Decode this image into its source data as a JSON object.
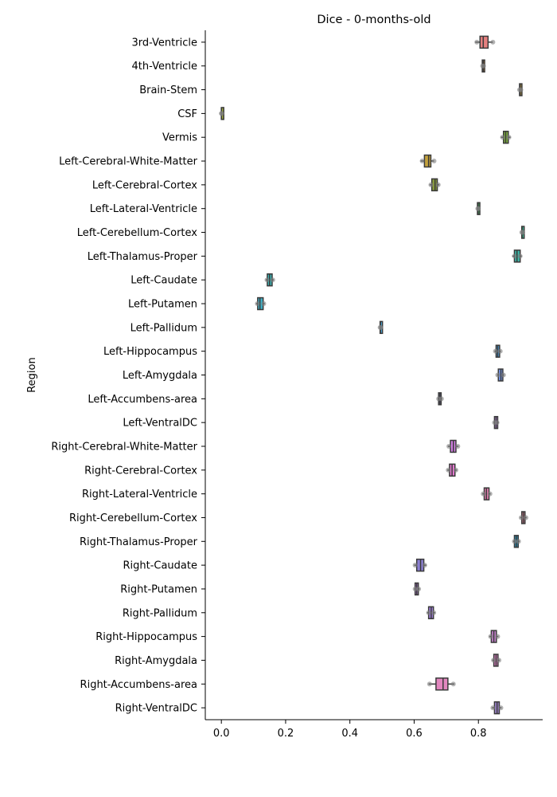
{
  "chart_data": {
    "type": "boxplot",
    "orientation": "horizontal",
    "title": "Dice - 0-months-old",
    "xlabel": "",
    "ylabel": "Region",
    "xlim": [
      -0.05,
      1.0
    ],
    "xticks": [
      0.0,
      0.2,
      0.4,
      0.6,
      0.8
    ],
    "xtick_labels": [
      "0.0",
      "0.2",
      "0.4",
      "0.6",
      "0.8"
    ],
    "grid": false,
    "colors": [
      "#e5807f",
      "#d98f40",
      "#b99b3c",
      "#9ba83f",
      "#7fb13f",
      "#c4a23d",
      "#8a9c3d",
      "#4bb063",
      "#3eb38e",
      "#3eb3a4",
      "#3cb2b3",
      "#3fb0c6",
      "#4aa9db",
      "#4c9ad6",
      "#7597e8",
      "#9893e5",
      "#b98bde",
      "#d27ee3",
      "#e57ad2",
      "#e67eb1",
      "#e8859a",
      "#2a8fb8",
      "#8b7fd3",
      "#b07fd0",
      "#a07fdd",
      "#c47fcc",
      "#d87fc0",
      "#e287bf",
      "#9d84cc"
    ],
    "regions": [
      {
        "name": "3rd-Ventricle",
        "q1": 0.805,
        "median": 0.815,
        "q3": 0.83,
        "wlo": 0.79,
        "whi": 0.845,
        "points": [
          0.795,
          0.845
        ]
      },
      {
        "name": "4th-Ventricle",
        "q1": 0.812,
        "median": 0.815,
        "q3": 0.818,
        "wlo": 0.81,
        "whi": 0.82,
        "points": [
          0.813,
          0.816
        ]
      },
      {
        "name": "Brain-Stem",
        "q1": 0.928,
        "median": 0.93,
        "q3": 0.933,
        "wlo": 0.925,
        "whi": 0.935,
        "points": [
          0.928,
          0.932
        ]
      },
      {
        "name": "CSF",
        "q1": 0.0,
        "median": 0.0,
        "q3": 0.001,
        "wlo": 0.0,
        "whi": 0.002,
        "points": [
          0.0,
          0.001
        ]
      },
      {
        "name": "Vermis",
        "q1": 0.878,
        "median": 0.885,
        "q3": 0.893,
        "wlo": 0.87,
        "whi": 0.9,
        "points": [
          0.875,
          0.895
        ]
      },
      {
        "name": "Left-Cerebral-White-Matter",
        "q1": 0.632,
        "median": 0.645,
        "q3": 0.652,
        "wlo": 0.62,
        "whi": 0.662,
        "points": [
          0.625,
          0.662
        ]
      },
      {
        "name": "Left-Cerebral-Cortex",
        "q1": 0.655,
        "median": 0.665,
        "q3": 0.672,
        "wlo": 0.648,
        "whi": 0.678,
        "points": [
          0.652,
          0.675
        ]
      },
      {
        "name": "Left-Lateral-Ventricle",
        "q1": 0.797,
        "median": 0.799,
        "q3": 0.8,
        "wlo": 0.795,
        "whi": 0.801,
        "points": [
          0.798,
          0.8
        ]
      },
      {
        "name": "Left-Cerebellum-Cortex",
        "q1": 0.935,
        "median": 0.936,
        "q3": 0.938,
        "wlo": 0.934,
        "whi": 0.939,
        "points": [
          0.935,
          0.938
        ]
      },
      {
        "name": "Left-Thalamus-Proper",
        "q1": 0.912,
        "median": 0.92,
        "q3": 0.93,
        "wlo": 0.905,
        "whi": 0.935,
        "points": [
          0.912,
          0.93
        ]
      },
      {
        "name": "Left-Caudate",
        "q1": 0.143,
        "median": 0.15,
        "q3": 0.158,
        "wlo": 0.138,
        "whi": 0.163,
        "points": [
          0.142,
          0.16
        ]
      },
      {
        "name": "Left-Putamen",
        "q1": 0.113,
        "median": 0.12,
        "q3": 0.13,
        "wlo": 0.108,
        "whi": 0.135,
        "points": [
          0.112,
          0.132
        ]
      },
      {
        "name": "Left-Pallidum",
        "q1": 0.494,
        "median": 0.495,
        "q3": 0.496,
        "wlo": 0.493,
        "whi": 0.497,
        "points": [
          0.494,
          0.496
        ]
      },
      {
        "name": "Left-Hippocampus",
        "q1": 0.855,
        "median": 0.86,
        "q3": 0.866,
        "wlo": 0.85,
        "whi": 0.87,
        "points": [
          0.853,
          0.868
        ]
      },
      {
        "name": "Left-Amygdala",
        "q1": 0.862,
        "median": 0.87,
        "q3": 0.876,
        "wlo": 0.858,
        "whi": 0.88,
        "points": [
          0.86,
          0.878
        ]
      },
      {
        "name": "Left-Accumbens-area",
        "q1": 0.676,
        "median": 0.68,
        "q3": 0.684,
        "wlo": 0.673,
        "whi": 0.687,
        "points": [
          0.676,
          0.685
        ]
      },
      {
        "name": "Left-VentralDC",
        "q1": 0.85,
        "median": 0.855,
        "q3": 0.86,
        "wlo": 0.847,
        "whi": 0.863,
        "points": [
          0.85,
          0.858
        ]
      },
      {
        "name": "Right-Cerebral-White-Matter",
        "q1": 0.713,
        "median": 0.722,
        "q3": 0.73,
        "wlo": 0.705,
        "whi": 0.738,
        "points": [
          0.708,
          0.736
        ]
      },
      {
        "name": "Right-Cerebral-Cortex",
        "q1": 0.71,
        "median": 0.718,
        "q3": 0.727,
        "wlo": 0.703,
        "whi": 0.733,
        "points": [
          0.706,
          0.73
        ]
      },
      {
        "name": "Right-Lateral-Ventricle",
        "q1": 0.818,
        "median": 0.825,
        "q3": 0.833,
        "wlo": 0.812,
        "whi": 0.838,
        "points": [
          0.815,
          0.836
        ]
      },
      {
        "name": "Right-Cerebellum-Cortex",
        "q1": 0.935,
        "median": 0.94,
        "q3": 0.945,
        "wlo": 0.93,
        "whi": 0.95,
        "points": [
          0.933,
          0.948
        ]
      },
      {
        "name": "Right-Thalamus-Proper",
        "q1": 0.912,
        "median": 0.918,
        "q3": 0.924,
        "wlo": 0.908,
        "whi": 0.928,
        "points": [
          0.912,
          0.925
        ]
      },
      {
        "name": "Right-Caudate",
        "q1": 0.608,
        "median": 0.62,
        "q3": 0.63,
        "wlo": 0.6,
        "whi": 0.638,
        "points": [
          0.603,
          0.633
        ]
      },
      {
        "name": "Right-Putamen",
        "q1": 0.603,
        "median": 0.608,
        "q3": 0.613,
        "wlo": 0.6,
        "whi": 0.617,
        "points": [
          0.603,
          0.614
        ]
      },
      {
        "name": "Right-Pallidum",
        "q1": 0.645,
        "median": 0.653,
        "q3": 0.66,
        "wlo": 0.64,
        "whi": 0.665,
        "points": [
          0.645,
          0.661
        ]
      },
      {
        "name": "Right-Hippocampus",
        "q1": 0.84,
        "median": 0.848,
        "q3": 0.856,
        "wlo": 0.834,
        "whi": 0.862,
        "points": [
          0.838,
          0.86
        ]
      },
      {
        "name": "Right-Amygdala",
        "q1": 0.848,
        "median": 0.855,
        "q3": 0.861,
        "wlo": 0.843,
        "whi": 0.866,
        "points": [
          0.847,
          0.864
        ]
      },
      {
        "name": "Right-Accumbens-area",
        "q1": 0.668,
        "median": 0.69,
        "q3": 0.705,
        "wlo": 0.645,
        "whi": 0.725,
        "points": [
          0.648,
          0.722
        ]
      },
      {
        "name": "Right-VentralDC",
        "q1": 0.85,
        "median": 0.858,
        "q3": 0.865,
        "wlo": 0.842,
        "whi": 0.872,
        "points": [
          0.845,
          0.87
        ]
      }
    ]
  }
}
